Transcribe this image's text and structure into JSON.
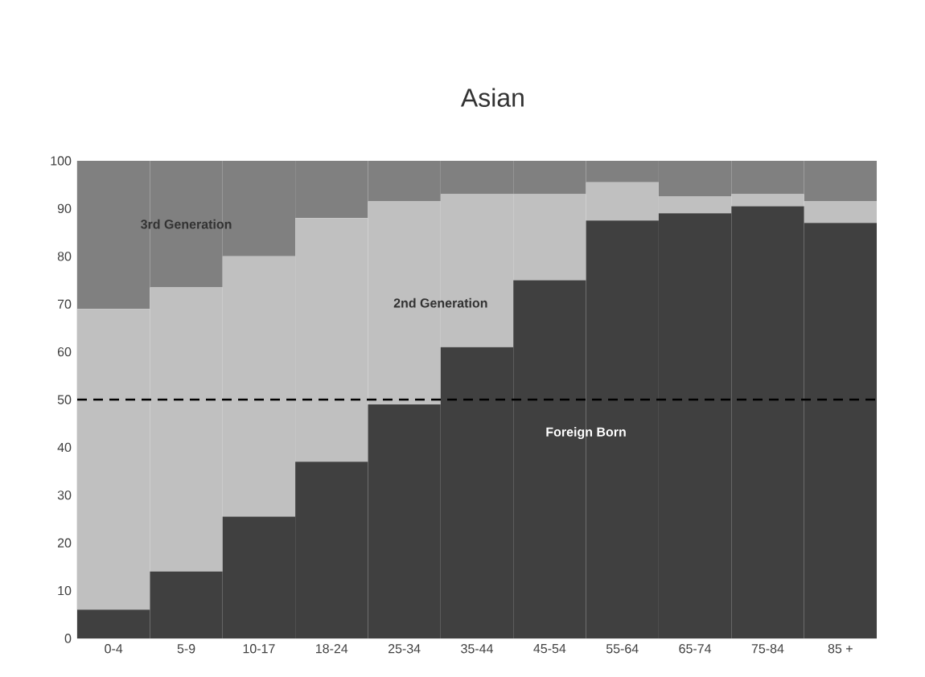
{
  "chart_data": {
    "type": "bar",
    "stacked": true,
    "title": "Asian",
    "categories": [
      "0-4",
      "5-9",
      "10-17",
      "18-24",
      "25-34",
      "35-44",
      "45-54",
      "55-64",
      "65-74",
      "75-84",
      "85 +"
    ],
    "series": [
      {
        "name": "Foreign Born",
        "color": "#404040",
        "values": [
          6,
          14,
          25.5,
          37,
          49,
          61,
          75,
          87.5,
          89,
          90.5,
          87
        ]
      },
      {
        "name": "2nd Generation",
        "color": "#c0c0c0",
        "values": [
          63,
          59.5,
          54.5,
          51,
          42.5,
          32,
          18,
          8,
          3.5,
          2.5,
          4.5
        ]
      },
      {
        "name": "3rd Generation",
        "color": "#808080",
        "values": [
          31,
          26.5,
          20,
          12,
          8.5,
          7,
          7,
          4.5,
          7.5,
          7,
          8.5
        ]
      }
    ],
    "ylim": [
      0,
      100
    ],
    "yticks": [
      0,
      10,
      20,
      30,
      40,
      50,
      60,
      70,
      80,
      90,
      100
    ],
    "ref_lines": [
      {
        "axis": "y",
        "value": 50,
        "line_style": "dashed",
        "color": "#000000"
      }
    ]
  }
}
